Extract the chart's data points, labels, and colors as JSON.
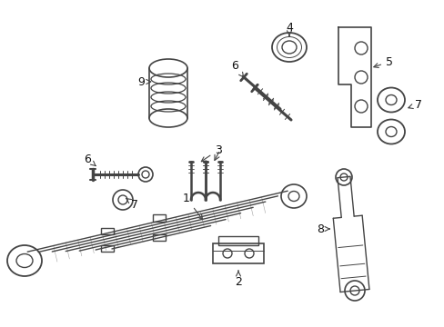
{
  "bg_color": "#ffffff",
  "line_color": "#444444",
  "figsize": [
    4.89,
    3.6
  ],
  "dpi": 100
}
